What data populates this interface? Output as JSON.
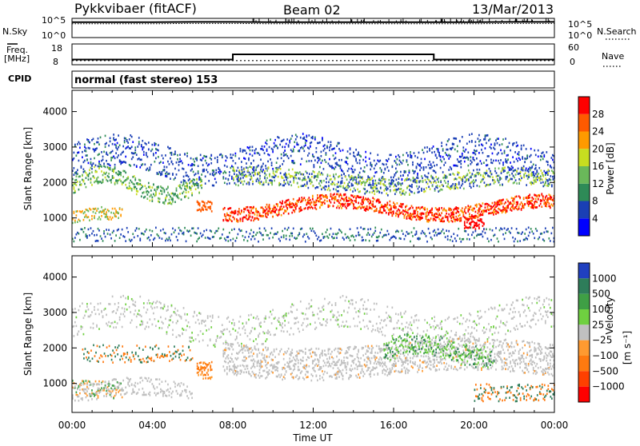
{
  "header": {
    "title": "Pykkvibaer (fitACF)",
    "beam": "Beam 02",
    "date": "13/Mar/2013"
  },
  "left_labels": {
    "nsky": "N.Sky",
    "freq": "Freq.",
    "freq_unit": "[MHz]",
    "cpid": "CPID"
  },
  "right_labels": {
    "nsearch": "N.Search",
    "nave": "Nave"
  },
  "noise_panel": {
    "left_ticks": [
      "10^5",
      "10^0"
    ],
    "right_ticks": [
      "10^5",
      "10^0"
    ]
  },
  "freq_panel": {
    "left_ticks": [
      "18",
      "8"
    ],
    "right_ticks": [
      "60",
      "0"
    ]
  },
  "cpid_text": "normal (fast stereo) 153",
  "x_axis": {
    "label": "Time UT",
    "ticks": [
      "00:00",
      "04:00",
      "08:00",
      "12:00",
      "16:00",
      "20:00",
      "00:00"
    ]
  },
  "chart_data": [
    {
      "type": "line",
      "name": "noise",
      "x": [
        0,
        2,
        4,
        6,
        8,
        10,
        12,
        14,
        16,
        18,
        20,
        22,
        24
      ],
      "y_log10": [
        4.0,
        4.0,
        4.0,
        4.1,
        4.1,
        4.0,
        4.0,
        4.0,
        4.0,
        4.0,
        4.0,
        4.1,
        4.1
      ],
      "ylim_log10": [
        0,
        5
      ]
    },
    {
      "type": "line",
      "name": "frequency",
      "ylabel": "Freq. [MHz]",
      "x": [
        0,
        3.8,
        8.0,
        8.0,
        18.0,
        18.0,
        24
      ],
      "series": [
        {
          "name": "Freq.",
          "values": [
            10.5,
            10.5,
            10.5,
            13.0,
            13.0,
            10.5,
            10.5
          ]
        },
        {
          "name": "Nave",
          "values": [
            12,
            12,
            12,
            12,
            12,
            12,
            12
          ]
        }
      ],
      "ylim": [
        8,
        18
      ],
      "y2lim": [
        0,
        60
      ]
    },
    {
      "type": "heatmap",
      "name": "power",
      "ylabel": "Slant Range [km]",
      "xlabel": "Time UT",
      "xlim": [
        0,
        24
      ],
      "ylim": [
        180,
        4600
      ],
      "yticks": [
        1000,
        2000,
        3000,
        4000
      ],
      "colorbar": {
        "label": "Power [dB]",
        "ticks": [
          "4",
          "8",
          "12",
          "16",
          "20",
          "24",
          "28"
        ],
        "colors": [
          "#0000ff",
          "#1a3fb5",
          "#2e8b57",
          "#6ab85a",
          "#c7dd20",
          "#ff9a00",
          "#ff5a00",
          "#ff0000"
        ]
      }
    },
    {
      "type": "heatmap",
      "name": "velocity",
      "ylabel": "Slant Range [km]",
      "xlabel": "Time UT",
      "xlim": [
        0,
        24
      ],
      "ylim": [
        180,
        4600
      ],
      "yticks": [
        1000,
        2000,
        3000,
        4000
      ],
      "colorbar": {
        "label": "Velocity",
        "unit": "[m s⁻¹]",
        "ticks": [
          "1000",
          "500",
          "100",
          "25",
          "−25",
          "−100",
          "−500",
          "−1000"
        ],
        "colors": [
          "#2040c0",
          "#2e7d5a",
          "#3f9f45",
          "#6fd040",
          "#c0c0c0",
          "#ff9a30",
          "#ff7a10",
          "#ff4000",
          "#ff0000"
        ]
      }
    }
  ]
}
